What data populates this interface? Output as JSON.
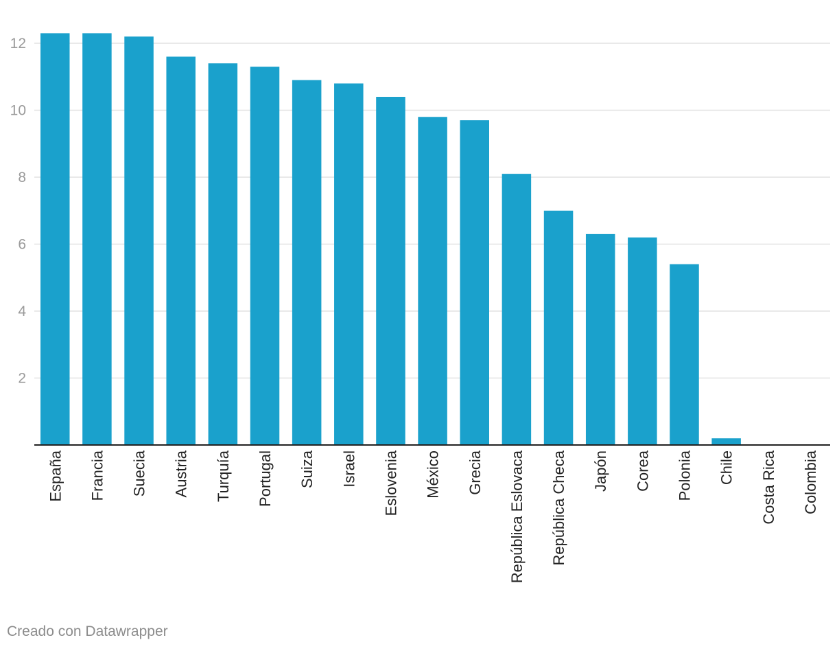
{
  "chart_data": {
    "type": "bar",
    "title": "",
    "xlabel": "",
    "ylabel": "",
    "categories": [
      "España",
      "Francia",
      "Suecia",
      "Austria",
      "Turquía",
      "Portugal",
      "Suiza",
      "Israel",
      "Eslovenia",
      "México",
      "Grecia",
      "República Eslovaca",
      "República Checa",
      "Japón",
      "Corea",
      "Polonia",
      "Chile",
      "Costa Rica",
      "Colombia"
    ],
    "values": [
      12.3,
      12.3,
      12.2,
      11.6,
      11.4,
      11.3,
      10.9,
      10.8,
      10.4,
      9.8,
      9.7,
      8.1,
      7.0,
      6.3,
      6.2,
      5.4,
      0.2,
      0,
      0
    ],
    "ylim": [
      0,
      12.5
    ],
    "yticks": [
      "2",
      "4",
      "6",
      "8",
      "10",
      "12"
    ],
    "grid": true,
    "colors": {
      "bar": "#1aa1cc",
      "grid": "#e2e2e2",
      "axis": "#222222"
    }
  },
  "footer": {
    "credit": "Creado con Datawrapper"
  }
}
